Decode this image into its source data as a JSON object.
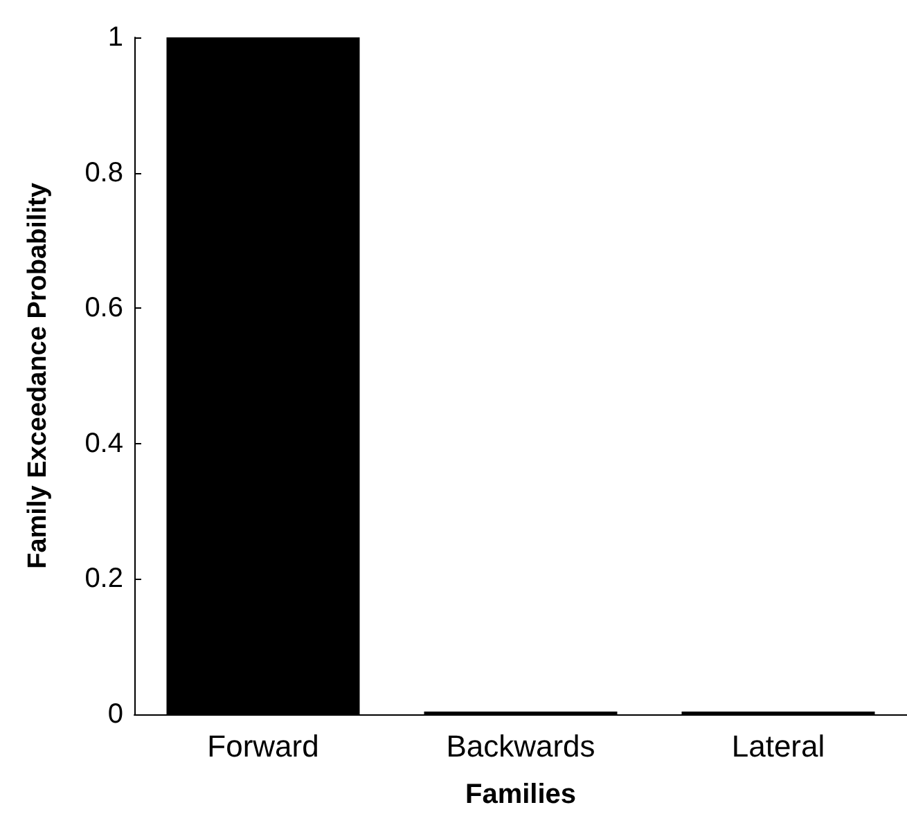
{
  "chart_data": {
    "type": "bar",
    "xlabel": "Families",
    "ylabel": "Family Exceedance Probability",
    "categories": [
      "Forward",
      "Backwards",
      "Lateral"
    ],
    "values": [
      1,
      0.004,
      0.004
    ],
    "color": "#000000",
    "ylim": [
      0,
      1
    ],
    "yticks": [
      0,
      0.2,
      0.4,
      0.6,
      0.8,
      1
    ],
    "grid": false
  }
}
